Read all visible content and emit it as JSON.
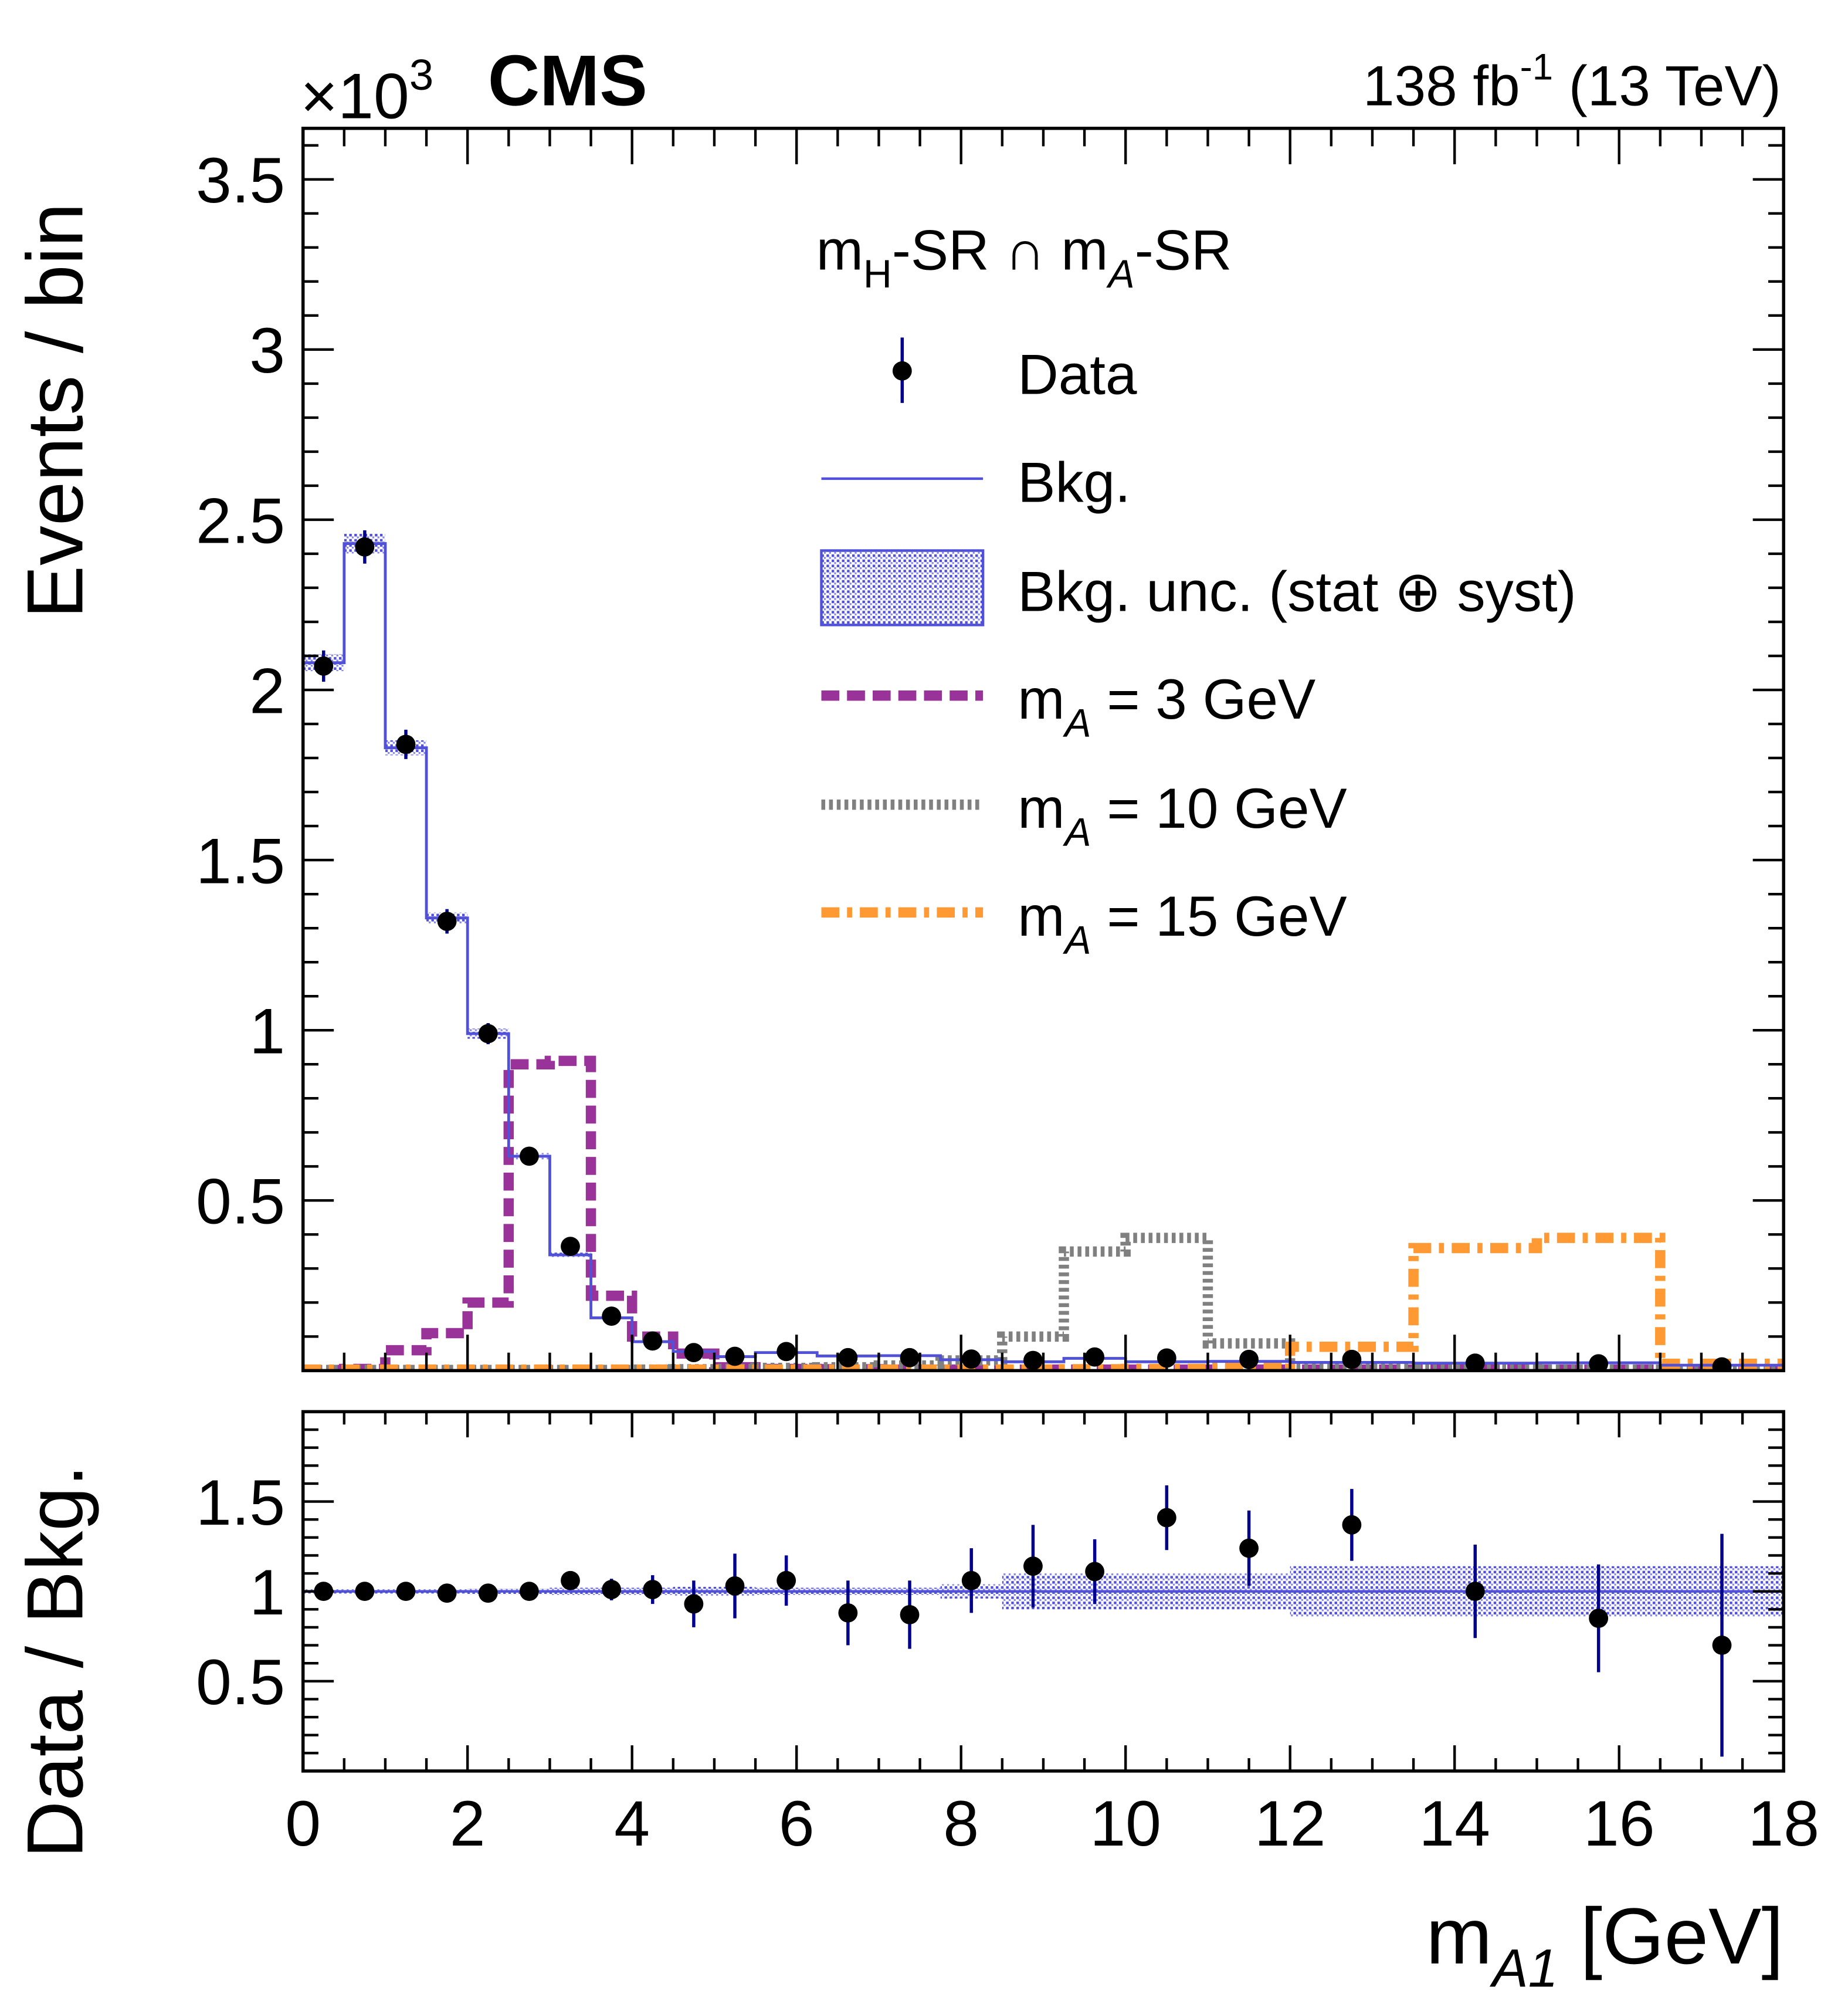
{
  "header": {
    "exponent_base": "×10",
    "exponent_power": "3",
    "experiment": "CMS",
    "lumi_value": "138 fb",
    "lumi_power": "-1",
    "energy": " (13 TeV)"
  },
  "legend": {
    "header": {
      "m1": "m",
      "sub1": "H",
      "mid": "-SR ∩ m",
      "sub2": "A",
      "end": "-SR"
    },
    "data": "Data",
    "bkg": "Bkg.",
    "bkg_unc": "Bkg. unc.  (stat ⊕ syst)",
    "signals": [
      {
        "sym": "m",
        "sub": "A",
        "rest": " = 3 GeV"
      },
      {
        "sym": "m",
        "sub": "A",
        "rest": " = 10 GeV"
      },
      {
        "sym": "m",
        "sub": "A",
        "rest": " = 15 GeV"
      }
    ]
  },
  "colors": {
    "bkg": "#5050d8",
    "data_marker": "#000000",
    "data_error": "#00008c",
    "signal_3": "#993399",
    "signal_10": "#808080",
    "signal_15": "#ff9933"
  },
  "chart_data": [
    {
      "type": "bar",
      "panel": "main",
      "ylabel": "Events / bin",
      "y_multiplier": "×10^3",
      "ylim": [
        0,
        3.65
      ],
      "xlim": [
        0,
        18
      ],
      "yticks": [
        "0.5",
        "1",
        "1.5",
        "2",
        "2.5",
        "3",
        "3.5"
      ],
      "bin_edges": [
        0,
        0.5,
        1,
        1.5,
        2,
        2.5,
        3,
        3.5,
        4,
        4.5,
        5,
        5.5,
        6.25,
        7,
        7.75,
        8.5,
        9.25,
        10,
        11,
        12,
        13.5,
        15,
        16.5,
        18
      ],
      "series": [
        {
          "name": "Data",
          "kind": "points",
          "values": [
            2.07,
            2.42,
            1.84,
            1.32,
            0.99,
            0.63,
            0.365,
            0.16,
            0.087,
            0.053,
            0.042,
            0.056,
            0.038,
            0.038,
            0.034,
            0.03,
            0.04,
            0.037,
            0.033,
            0.033,
            0.022,
            0.02,
            0.011
          ],
          "errors": [
            0.046,
            0.049,
            0.043,
            0.036,
            0.031,
            0.025,
            0.019,
            0.013,
            0.009,
            0.007,
            0.0065,
            0.0075,
            0.006,
            0.006,
            0.006,
            0.0055,
            0.0063,
            0.006,
            0.0057,
            0.0057,
            0.0047,
            0.0045,
            0.0033
          ]
        },
        {
          "name": "Bkg.",
          "kind": "step",
          "values": [
            2.08,
            2.43,
            1.83,
            1.33,
            0.99,
            0.63,
            0.34,
            0.155,
            0.085,
            0.056,
            0.041,
            0.053,
            0.043,
            0.044,
            0.032,
            0.026,
            0.036,
            0.026,
            0.027,
            0.024,
            0.022,
            0.023,
            0.016
          ],
          "rel_uncertainty": [
            0.012,
            0.012,
            0.012,
            0.012,
            0.015,
            0.015,
            0.02,
            0.02,
            0.02,
            0.025,
            0.025,
            0.02,
            0.02,
            0.02,
            0.04,
            0.1,
            0.1,
            0.1,
            0.1,
            0.14,
            0.14,
            0.14,
            0.14
          ]
        },
        {
          "name": "mA = 3 GeV",
          "kind": "step",
          "values": [
            0.002,
            0.005,
            0.06,
            0.11,
            0.2,
            0.9,
            0.91,
            0.22,
            0.1,
            0.05,
            0.01,
            0.005,
            0.004,
            0.003,
            0.003,
            0.003,
            0.003,
            0.003,
            0.003,
            0.003,
            0.003,
            0.003,
            0.003
          ]
        },
        {
          "name": "mA = 10 GeV",
          "kind": "step",
          "values": [
            0.002,
            0.002,
            0.002,
            0.002,
            0.002,
            0.002,
            0.002,
            0.002,
            0.003,
            0.004,
            0.005,
            0.008,
            0.01,
            0.015,
            0.03,
            0.1,
            0.35,
            0.39,
            0.08,
            0.01,
            0.004,
            0.003,
            0.003
          ]
        },
        {
          "name": "mA = 15 GeV",
          "kind": "step",
          "values": [
            0.003,
            0.003,
            0.003,
            0.003,
            0.003,
            0.003,
            0.003,
            0.003,
            0.003,
            0.003,
            0.003,
            0.003,
            0.003,
            0.003,
            0.003,
            0.003,
            0.004,
            0.005,
            0.008,
            0.07,
            0.36,
            0.39,
            0.02
          ]
        }
      ]
    },
    {
      "type": "scatter",
      "panel": "ratio",
      "ylabel": "Data / Bkg.",
      "xlabel": {
        "sym": "m",
        "sub": "A1",
        "unit": " [GeV]"
      },
      "ylim": [
        0,
        2
      ],
      "yticks": [
        "0.5",
        "1",
        "1.5"
      ],
      "xticks": [
        "0",
        "2",
        "4",
        "6",
        "8",
        "10",
        "12",
        "14",
        "16",
        "18"
      ],
      "values": [
        1.0,
        1.0,
        1.0,
        0.99,
        0.99,
        1.0,
        1.06,
        1.01,
        1.01,
        0.93,
        1.03,
        1.06,
        0.88,
        0.87,
        1.06,
        1.14,
        1.11,
        1.41,
        1.24,
        1.37,
        1.0,
        0.85,
        0.7
      ],
      "errors": [
        0.02,
        0.02,
        0.02,
        0.025,
        0.03,
        0.03,
        0.04,
        0.06,
        0.08,
        0.13,
        0.18,
        0.14,
        0.18,
        0.19,
        0.18,
        0.23,
        0.18,
        0.18,
        0.21,
        0.2,
        0.26,
        0.3,
        0.62
      ]
    }
  ]
}
